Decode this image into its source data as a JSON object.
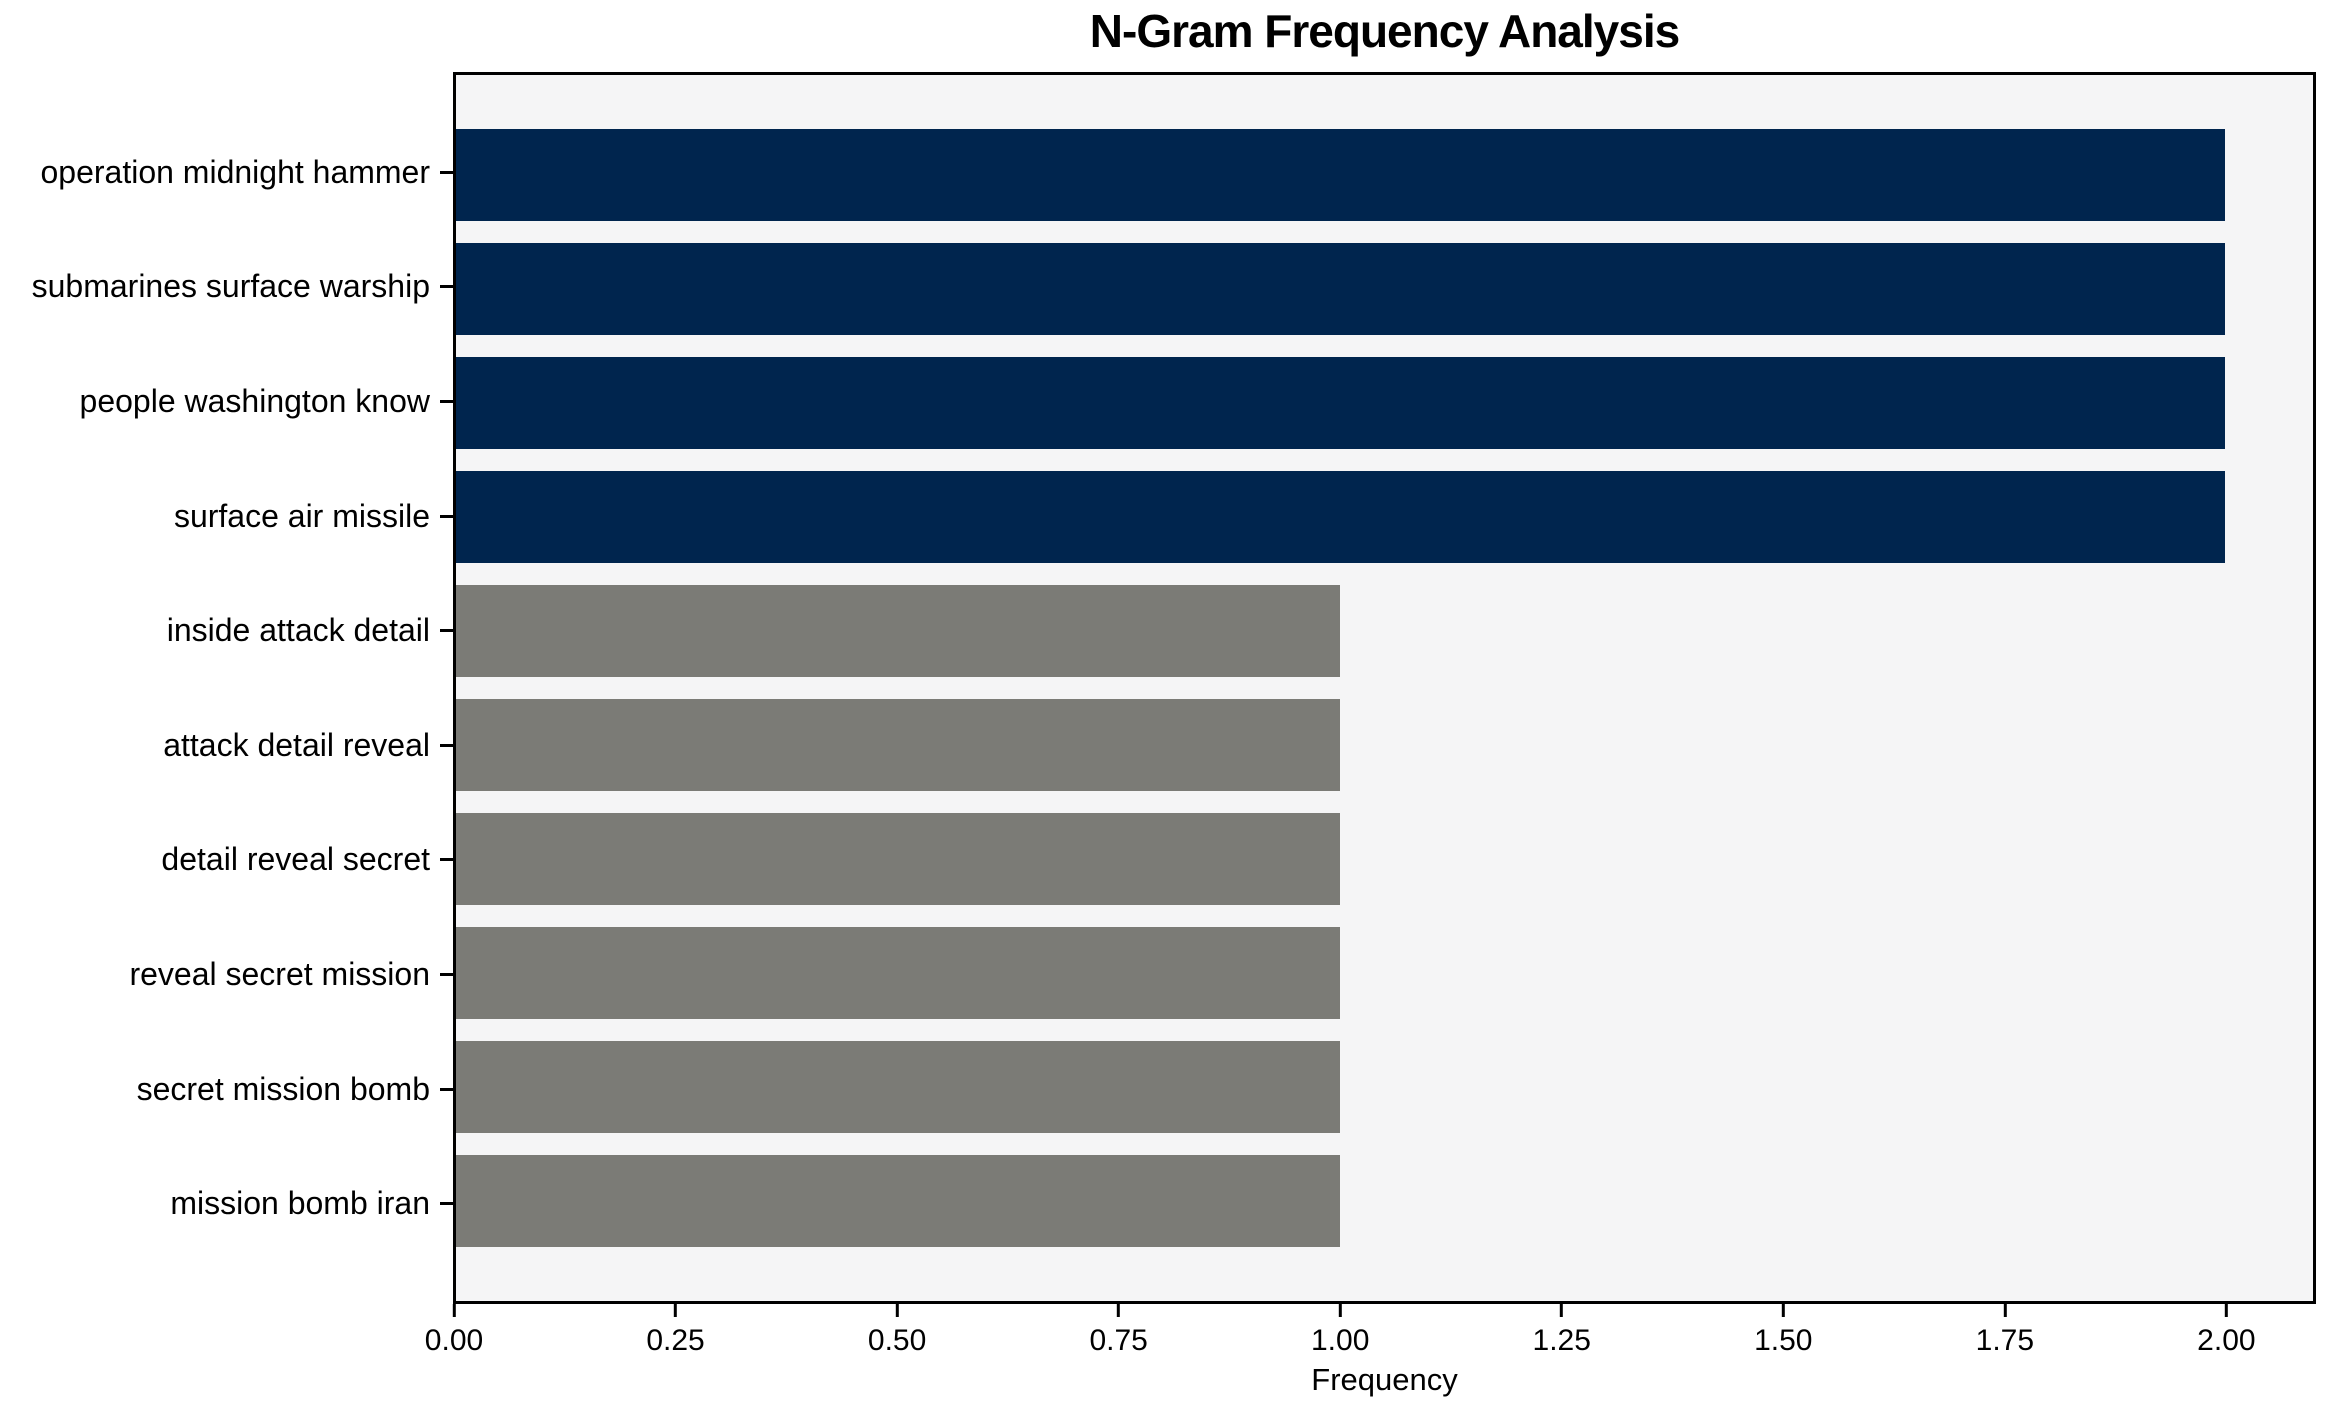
{
  "chart_data": {
    "type": "bar",
    "orientation": "horizontal",
    "title": "N-Gram Frequency Analysis",
    "xlabel": "Frequency",
    "ylabel": "",
    "categories": [
      "operation midnight hammer",
      "submarines surface warship",
      "people washington know",
      "surface air missile",
      "inside attack detail",
      "attack detail reveal",
      "detail reveal secret",
      "reveal secret mission",
      "secret mission bomb",
      "mission bomb iran"
    ],
    "values": [
      2,
      2,
      2,
      2,
      1,
      1,
      1,
      1,
      1,
      1
    ],
    "bar_colors": [
      "#00254E",
      "#00254E",
      "#00254E",
      "#00254E",
      "#7B7B76",
      "#7B7B76",
      "#7B7B76",
      "#7B7B76",
      "#7B7B76",
      "#7B7B76"
    ],
    "xlim": [
      0,
      2.1
    ],
    "x_ticks": [
      0,
      0.25,
      0.5,
      0.75,
      1.0,
      1.25,
      1.5,
      1.75,
      2.0
    ],
    "x_tick_labels": [
      "0.00",
      "0.25",
      "0.50",
      "0.75",
      "1.00",
      "1.25",
      "1.50",
      "1.75",
      "2.00"
    ],
    "grid": false,
    "legend": null,
    "colors": {
      "highlight_bar": "#00254E",
      "regular_bar": "#7B7B76",
      "plot_background": "#F5F5F6",
      "figure_background": "#FFFFFF",
      "axis": "#000000",
      "text": "#000000"
    }
  }
}
